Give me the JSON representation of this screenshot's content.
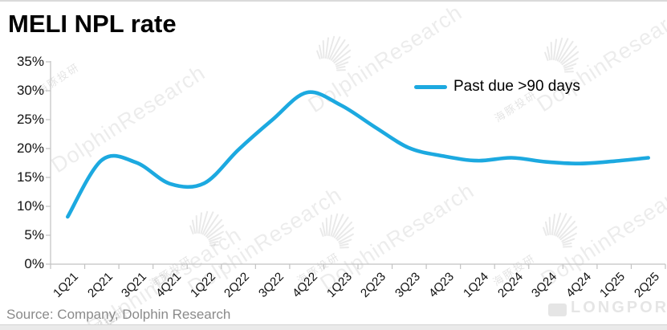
{
  "header": {
    "title": "MELI NPL rate"
  },
  "legend": {
    "label": "Past due >90 days"
  },
  "footer": {
    "source": "Source: Company, Dolphin Research"
  },
  "watermark": {
    "brand": "DolphinResearch",
    "brand_cn": "海豚投研",
    "footer_brand": "LONGPORT"
  },
  "colors": {
    "line": "#1ca9e0",
    "axis": "#c2c2c2",
    "text": "#111111",
    "source_text": "#8a8a8a"
  },
  "chart_data": {
    "type": "line",
    "title": "MELI NPL rate",
    "categories": [
      "1Q21",
      "2Q21",
      "3Q21",
      "4Q21",
      "1Q22",
      "2Q22",
      "3Q22",
      "4Q22",
      "1Q23",
      "2Q23",
      "3Q23",
      "4Q23",
      "1Q24",
      "2Q24",
      "3Q24",
      "4Q24",
      "1Q25",
      "2Q25"
    ],
    "series": [
      {
        "name": "Past due >90 days",
        "values": [
          8.2,
          18.0,
          17.6,
          13.9,
          14.0,
          19.8,
          25.0,
          29.7,
          27.5,
          23.7,
          20.1,
          18.7,
          17.9,
          18.4,
          17.7,
          17.4,
          17.8,
          18.4
        ]
      }
    ],
    "xlabel": "",
    "ylabel": "",
    "ylim": [
      0,
      35
    ],
    "yticks": [
      {
        "label": "0%",
        "value": 0
      },
      {
        "label": "5%",
        "value": 5
      },
      {
        "label": "10%",
        "value": 10
      },
      {
        "label": "15%",
        "value": 15
      },
      {
        "label": "20%",
        "value": 20
      },
      {
        "label": "25%",
        "value": 25
      },
      {
        "label": "30%",
        "value": 30
      },
      {
        "label": "35%",
        "value": 35
      }
    ],
    "grid": false,
    "smooth": true,
    "legend_position": "top-right",
    "line_color": "#1ca9e0"
  }
}
